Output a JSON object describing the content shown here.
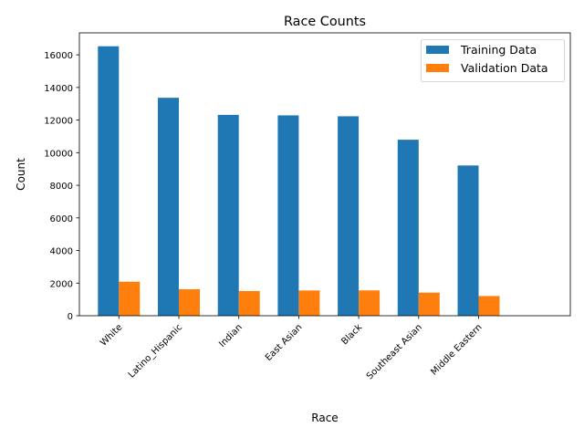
{
  "chart_data": {
    "type": "bar",
    "title": "Race Counts",
    "xlabel": "Race",
    "ylabel": "Count",
    "categories": [
      "White",
      "Latino_Hispanic",
      "Indian",
      "East Asian",
      "Black",
      "Southeast Asian",
      "Middle Eastern"
    ],
    "series": [
      {
        "name": "Training Data",
        "color": "#1f77b4",
        "values": [
          16527,
          13367,
          12319,
          12287,
          12233,
          10795,
          9216
        ]
      },
      {
        "name": "Validation Data",
        "color": "#ff7f0e",
        "values": [
          2085,
          1623,
          1516,
          1550,
          1556,
          1415,
          1209
        ]
      }
    ],
    "ylim": [
      0,
      17350
    ],
    "yticks": [
      0,
      2000,
      4000,
      6000,
      8000,
      10000,
      12000,
      14000,
      16000
    ],
    "grid": false,
    "legend": "upper right"
  }
}
